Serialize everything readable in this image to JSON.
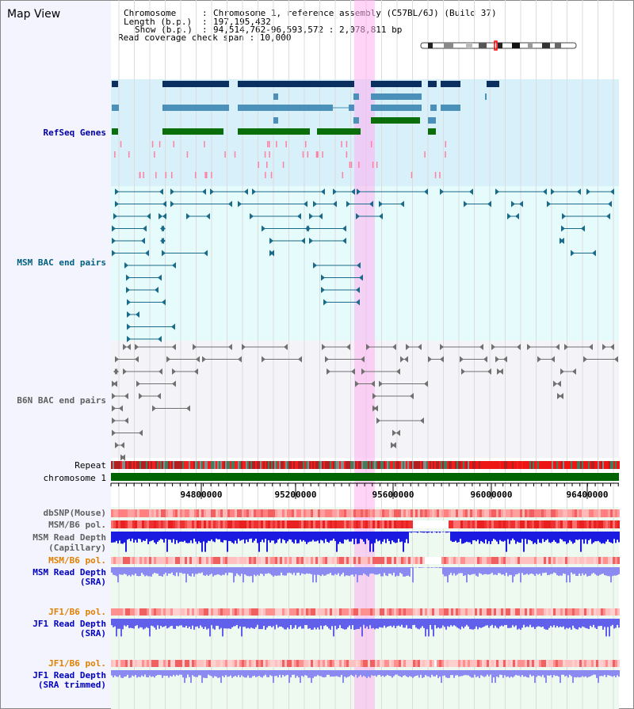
{
  "header": {
    "title": "Map View",
    "info": [
      {
        "label": "Chromosome",
        "value": "Chromosome 1, reference assembly (C57BL/6J) (Build 37)"
      },
      {
        "label": "Length (b.p.)",
        "value": "197,195,432"
      },
      {
        "label": "Show (b.p.)",
        "value": "94,514,762-96,593,572 : 2,078,811 bp"
      }
    ],
    "coverage_line": "Read coverage check span : 10,000"
  },
  "tracks": {
    "refseq": "RefSeq Genes",
    "msm_bac": "MSM BAC end pairs",
    "b6n_bac": "B6N BAC end pairs",
    "repeat": "Repeat",
    "chromosome": "chromosome 1",
    "dbsnp": "dbSNP(Mouse)",
    "msm_b6_pol": "MSM/B6 pol.",
    "msm_depth_cap": [
      "MSM Read Depth",
      "(Capillary)"
    ],
    "msm_b6_pol2": "MSM/B6 pol.",
    "msm_depth_sra": [
      "MSM Read Depth",
      "(SRA)"
    ],
    "jf1_b6_pol": "JF1/B6 pol.",
    "jf1_depth_sra": [
      "JF1 Read Depth",
      "(SRA)"
    ],
    "jf1_b6_pol2": "JF1/B6 pol.",
    "jf1_depth_trim": [
      "JF1 Read Depth",
      "(SRA trimmed)"
    ]
  },
  "axis": {
    "ticks": [
      "94800000",
      "95200000",
      "95600000",
      "96000000",
      "96400000"
    ]
  },
  "colors": {
    "label_default": "#606060",
    "label_refseq": "#0000a0",
    "label_msm_bac": "#006080",
    "label_b6n_bac": "#606060",
    "label_pol_highlight": "#e08000",
    "label_depth_blue": "#0000c0",
    "selection": "#ffb0f0",
    "chromosome_bar": "#006400"
  }
}
